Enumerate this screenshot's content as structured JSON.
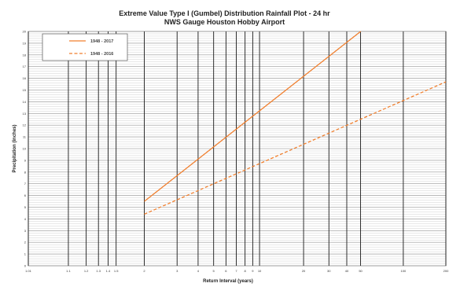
{
  "chart_data": {
    "type": "line",
    "title": "Extreme Value Type I (Gumbel) Distribution Rainfall Plot - 24 hr",
    "subtitle": "NWS Gauge Houston Hobby Airport",
    "xlabel": "Return Interval (years)",
    "ylabel": "Precipitation (inches)",
    "x_scale": "gumbel-reduced-variate",
    "xlim": [
      1.01,
      200
    ],
    "ylim": [
      0,
      20
    ],
    "grid": true,
    "legend_position": "top-left",
    "x_tick_labels": [
      "1.01",
      "1.1",
      "1.2",
      "1.3",
      "1.4",
      "1.5",
      "2",
      "3",
      "4",
      "5",
      "6",
      "7",
      "8",
      "9",
      "10",
      "20",
      "30",
      "40",
      "50",
      "100",
      "200"
    ],
    "y_ticks": [
      0,
      1,
      2,
      3,
      4,
      5,
      6,
      7,
      8,
      9,
      10,
      11,
      12,
      13,
      14,
      15,
      16,
      17,
      18,
      19,
      20
    ],
    "series": [
      {
        "name": "1948 - 2017",
        "color": "#f07f2e",
        "dash": "solid",
        "x": [
          2,
          50
        ],
        "y": [
          5.5,
          20
        ]
      },
      {
        "name": "1948 - 2016",
        "color": "#f07f2e",
        "dash": "dashed",
        "x": [
          2,
          200
        ],
        "y": [
          4.4,
          15.7
        ]
      }
    ]
  }
}
